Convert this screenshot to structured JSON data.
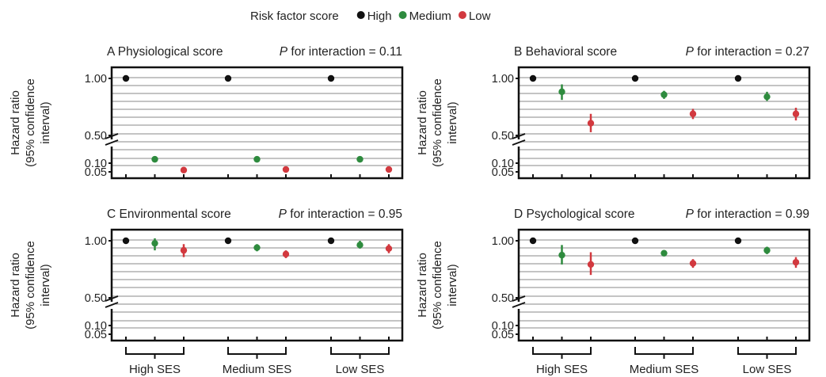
{
  "colors": {
    "High": "#111111",
    "Medium": "#2e8b3e",
    "Low": "#d2393f",
    "grid": "#c4c4c4",
    "frame": "#111111"
  },
  "legend": {
    "title": "Risk factor score",
    "entries": [
      "High",
      "Medium",
      "Low"
    ]
  },
  "chart_data": [
    {
      "type": "scatter",
      "panel": "A",
      "title": "A Physiological score",
      "interaction_label": "P",
      "interaction_text": "for interaction = 0.11",
      "ylabel": [
        "Hazard ratio",
        "(95% confidence",
        "interval)"
      ],
      "yticks": [
        "1.00",
        "0.50",
        "0.10",
        "0.05"
      ],
      "y_axis_break": true,
      "groups": [
        "High SES",
        "Medium SES",
        "Low SES"
      ],
      "categories": [
        "High",
        "Medium",
        "Low"
      ],
      "series": [
        {
          "name": "High",
          "values": [
            1.0,
            1.0,
            1.0
          ],
          "ci_low": [
            1.0,
            1.0,
            1.0
          ],
          "ci_high": [
            1.0,
            1.0,
            1.0
          ]
        },
        {
          "name": "Medium",
          "values": [
            0.26,
            0.26,
            0.26
          ],
          "ci_low": [
            0.25,
            0.25,
            0.25
          ],
          "ci_high": [
            0.27,
            0.27,
            0.27
          ]
        },
        {
          "name": "Low",
          "values": [
            0.08,
            0.09,
            0.09
          ],
          "ci_low": [
            0.07,
            0.08,
            0.08
          ],
          "ci_high": [
            0.09,
            0.1,
            0.1
          ]
        }
      ]
    },
    {
      "type": "scatter",
      "panel": "B",
      "title": "B Behavioral score",
      "interaction_label": "P",
      "interaction_text": "for interaction = 0.27",
      "ylabel": [
        "Hazard ratio",
        "(95% confidence",
        "interval)"
      ],
      "yticks": [
        "1.00",
        "0.50",
        "0.10",
        "0.05"
      ],
      "y_axis_break": true,
      "groups": [
        "High SES",
        "Medium SES",
        "Low SES"
      ],
      "categories": [
        "High",
        "Medium",
        "Low"
      ],
      "series": [
        {
          "name": "High",
          "values": [
            1.0,
            1.0,
            1.0
          ],
          "ci_low": [
            1.0,
            1.0,
            1.0
          ],
          "ci_high": [
            1.0,
            1.0,
            1.0
          ]
        },
        {
          "name": "Medium",
          "values": [
            0.85,
            0.82,
            0.8
          ],
          "ci_low": [
            0.77,
            0.78,
            0.76
          ],
          "ci_high": [
            0.93,
            0.86,
            0.85
          ]
        },
        {
          "name": "Low",
          "values": [
            0.58,
            0.65,
            0.65
          ],
          "ci_low": [
            0.52,
            0.61,
            0.6
          ],
          "ci_high": [
            0.65,
            0.69,
            0.7
          ]
        }
      ]
    },
    {
      "type": "scatter",
      "panel": "C",
      "title": "C Environmental score",
      "interaction_label": "P",
      "interaction_text": "for interaction = 0.95",
      "ylabel": [
        "Hazard ratio",
        "(95% confidence",
        "interval)"
      ],
      "yticks": [
        "1.00",
        "0.50",
        "0.10",
        "0.05"
      ],
      "y_axis_break": true,
      "groups": [
        "High SES",
        "Medium SES",
        "Low SES"
      ],
      "categories": [
        "High",
        "Medium",
        "Low"
      ],
      "series": [
        {
          "name": "High",
          "values": [
            1.0,
            1.0,
            1.0
          ],
          "ci_low": [
            1.0,
            1.0,
            1.0
          ],
          "ci_high": [
            1.0,
            1.0,
            1.0
          ]
        },
        {
          "name": "Medium",
          "values": [
            0.97,
            0.92,
            0.95
          ],
          "ci_low": [
            0.89,
            0.88,
            0.91
          ],
          "ci_high": [
            1.03,
            0.96,
            1.0
          ]
        },
        {
          "name": "Low",
          "values": [
            0.89,
            0.85,
            0.91
          ],
          "ci_low": [
            0.82,
            0.81,
            0.86
          ],
          "ci_high": [
            0.96,
            0.89,
            0.96
          ]
        }
      ]
    },
    {
      "type": "scatter",
      "panel": "D",
      "title": "D Psychological score",
      "interaction_label": "P",
      "interaction_text": "for interaction = 0.99",
      "ylabel": [
        "Hazard ratio",
        "(95% confidence",
        "interval)"
      ],
      "yticks": [
        "1.00",
        "0.50",
        "0.10",
        "0.05"
      ],
      "y_axis_break": true,
      "groups": [
        "High SES",
        "Medium SES",
        "Low SES"
      ],
      "categories": [
        "High",
        "Medium",
        "Low"
      ],
      "series": [
        {
          "name": "High",
          "values": [
            1.0,
            1.0,
            1.0
          ],
          "ci_low": [
            1.0,
            1.0,
            1.0
          ],
          "ci_high": [
            1.0,
            1.0,
            1.0
          ]
        },
        {
          "name": "Medium",
          "values": [
            0.84,
            0.86,
            0.89
          ],
          "ci_low": [
            0.75,
            0.83,
            0.85
          ],
          "ci_high": [
            0.95,
            0.89,
            0.93
          ]
        },
        {
          "name": "Low",
          "values": [
            0.75,
            0.76,
            0.77
          ],
          "ci_low": [
            0.66,
            0.72,
            0.72
          ],
          "ci_high": [
            0.87,
            0.8,
            0.82
          ]
        }
      ]
    }
  ]
}
